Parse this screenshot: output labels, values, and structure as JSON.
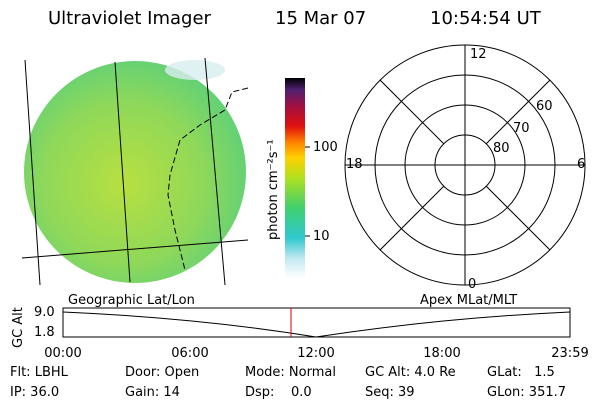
{
  "header": {
    "instrument": "Ultraviolet Imager",
    "date": "15 Mar 07",
    "time": "10:54:54 UT"
  },
  "colorbar": {
    "unit": "photon cm⁻²s⁻¹",
    "ticks": [
      "100",
      "10"
    ]
  },
  "polar": {
    "mlt_labels": [
      "12",
      "6",
      "0",
      "18"
    ],
    "mlat_labels": [
      "60",
      "70",
      "80"
    ]
  },
  "altitude_plot": {
    "left_title": "Geographic Lat/Lon",
    "right_title": "Apex MLat/MLT",
    "y_label": "GC Alt",
    "y_ticks": [
      "9.0",
      "1.8"
    ],
    "x_ticks": [
      "00:00",
      "06:00",
      "12:00",
      "18:00",
      "23:59"
    ]
  },
  "info": {
    "rows": [
      [
        "Flt: LBHL",
        "Door: Open",
        "Mode: Normal",
        "GC Alt: 4.0 Re",
        "GLat:   1.5"
      ],
      [
        "IP: 36.0",
        "Gain: 14",
        "Dsp:    0.0",
        "Seq: 39",
        "GLon: 351.7"
      ]
    ]
  }
}
